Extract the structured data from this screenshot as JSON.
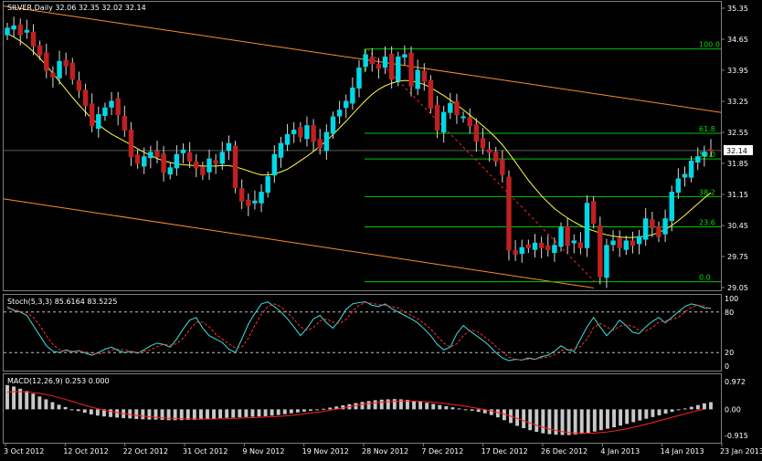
{
  "colors": {
    "background": "#000000",
    "frame": "#7f7f7f",
    "bull_candle": "#00d8e8",
    "bear_candle": "#c02020",
    "wick": "#d8d8d8",
    "ma": "#ffff40",
    "channel": "#ff8c2a",
    "fib": "#00c800",
    "fib_label": "#00e000",
    "stoch_main": "#40e0e0",
    "stoch_signal": "#ff3030",
    "macd_hist": "#c8c8c8",
    "macd_signal": "#ff2020",
    "price_tag_bg": "#ffffff"
  },
  "header": {
    "price": "SILVER,Daily  32.06 32.35 32.02 32.14",
    "stoch": "Stoch(5,3,3) 85.6164 83.5225",
    "macd": "MACD(12,26,9) 0.253 0.000"
  },
  "current_price": "32.14",
  "chart_data": {
    "type": "candlestick",
    "symbol": "SILVER",
    "timeframe": "Daily",
    "price_axis": {
      "range": [
        29.05,
        35.35
      ],
      "ticks": [
        "35.35",
        "34.65",
        "33.95",
        "33.25",
        "32.55",
        "31.85",
        "31.15",
        "30.45",
        "29.75",
        "29.05"
      ]
    },
    "x_ticks": [
      "3 Oct 2012",
      "12 Oct 2012",
      "22 Oct 2012",
      "31 Oct 2012",
      "9 Nov 2012",
      "19 Nov 2012",
      "28 Nov 2012",
      "7 Dec 2012",
      "17 Dec 2012",
      "26 Dec 2012",
      "4 Jan 2013",
      "14 Jan 2013",
      "23 Jan 2013"
    ],
    "closes": [
      34.9,
      34.95,
      34.75,
      34.85,
      34.5,
      34.3,
      33.95,
      33.8,
      34.15,
      34.05,
      33.75,
      33.5,
      33.15,
      32.7,
      32.95,
      33.1,
      33.25,
      32.95,
      32.6,
      32.0,
      31.85,
      32.0,
      32.1,
      32.0,
      31.65,
      31.75,
      32.05,
      32.15,
      31.9,
      31.75,
      31.6,
      31.95,
      31.85,
      32.1,
      32.3,
      31.3,
      31.0,
      30.9,
      31.0,
      31.2,
      31.55,
      32.05,
      32.3,
      32.5,
      32.6,
      32.45,
      32.7,
      32.35,
      32.2,
      32.55,
      32.9,
      33.05,
      33.25,
      33.55,
      34.0,
      34.3,
      34.1,
      34.0,
      34.25,
      33.75,
      34.25,
      34.3,
      33.6,
      33.95,
      33.7,
      33.1,
      32.6,
      33.0,
      33.2,
      32.95,
      32.9,
      32.7,
      32.35,
      32.2,
      32.1,
      31.9,
      31.6,
      29.9,
      29.8,
      29.95,
      29.95,
      30.05,
      29.95,
      29.9,
      30.0,
      30.4,
      30.0,
      30.1,
      29.95,
      30.95,
      30.5,
      29.3,
      30.0,
      30.1,
      29.95,
      30.1,
      30.0,
      30.2,
      30.6,
      30.4,
      30.2,
      30.6,
      31.2,
      31.5,
      31.6,
      31.9,
      32.0,
      32.1,
      32.14
    ],
    "moving_average": {
      "name": "MA",
      "values": [
        34.78,
        34.7,
        34.61,
        34.5,
        34.37,
        34.22,
        34.06,
        33.88,
        33.7,
        33.52,
        33.34,
        33.17,
        33.01,
        32.86,
        32.73,
        32.61,
        32.51,
        32.43,
        32.35,
        32.27,
        32.18,
        32.1,
        32.03,
        31.96,
        31.91,
        31.87,
        31.84,
        31.82,
        31.81,
        31.8,
        31.79,
        31.79,
        31.79,
        31.8,
        31.8,
        31.77,
        31.73,
        31.68,
        31.63,
        31.59,
        31.59,
        31.61,
        31.66,
        31.72,
        31.81,
        31.91,
        32.01,
        32.12,
        32.24,
        32.36,
        32.5,
        32.65,
        32.8,
        32.96,
        33.12,
        33.27,
        33.41,
        33.52,
        33.6,
        33.66,
        33.7,
        33.72,
        33.71,
        33.68,
        33.63,
        33.56,
        33.47,
        33.38,
        33.28,
        33.17,
        33.06,
        32.94,
        32.82,
        32.7,
        32.57,
        32.43,
        32.27,
        32.08,
        31.88,
        31.67,
        31.47,
        31.29,
        31.12,
        30.97,
        30.83,
        30.72,
        30.62,
        30.53,
        30.45,
        30.38,
        30.33,
        30.28,
        30.24,
        30.21,
        30.19,
        30.18,
        30.18,
        30.19,
        30.21,
        30.24,
        30.29,
        30.36,
        30.45,
        30.56,
        30.68,
        30.81,
        30.94,
        31.07,
        31.19
      ]
    },
    "trend_channel": {
      "upper_line": [
        {
          "date": "3 Oct 2012",
          "value": 35.4
        },
        {
          "date": "23 Jan 2013",
          "value": 33.0
        }
      ],
      "lower_line": [
        {
          "date": "3 Oct 2012",
          "value": 31.05
        },
        {
          "date": "23 Jan 2013",
          "value": 28.6
        }
      ]
    },
    "fibonacci": {
      "levels": [
        {
          "label": "100.0",
          "price": 34.43
        },
        {
          "label": "61.8",
          "price": 32.53
        },
        {
          "label": "50.0",
          "price": 31.95
        },
        {
          "label": "38.2",
          "price": 31.1
        },
        {
          "label": "23.6",
          "price": 30.42
        },
        {
          "label": "0.0",
          "price": 29.18
        }
      ]
    },
    "stochastic": {
      "name": "Stoch(5,3,3)",
      "range": [
        0,
        100
      ],
      "ticks": [
        "100",
        "80",
        "20",
        "0"
      ],
      "levels": [
        80,
        20
      ],
      "main": [
        88,
        82,
        80,
        75,
        60,
        45,
        30,
        22,
        20,
        24,
        21,
        23,
        19,
        16,
        20,
        25,
        28,
        23,
        20,
        22,
        19,
        24,
        30,
        34,
        32,
        28,
        40,
        55,
        68,
        72,
        56,
        45,
        40,
        35,
        25,
        20,
        40,
        62,
        78,
        92,
        95,
        88,
        80,
        70,
        58,
        45,
        56,
        70,
        75,
        64,
        56,
        68,
        84,
        92,
        94,
        95,
        90,
        88,
        92,
        85,
        80,
        75,
        70,
        64,
        55,
        45,
        32,
        24,
        28,
        48,
        60,
        52,
        45,
        38,
        30,
        20,
        12,
        8,
        10,
        9,
        12,
        10,
        14,
        16,
        22,
        30,
        24,
        22,
        40,
        58,
        72,
        58,
        45,
        55,
        68,
        60,
        50,
        48,
        58,
        66,
        72,
        64,
        72,
        80,
        88,
        92,
        90,
        86,
        85.6
      ],
      "signal": [
        85,
        84,
        81,
        79,
        72,
        60,
        45,
        32,
        24,
        22,
        22,
        22,
        21,
        19,
        18,
        20,
        24,
        25,
        24,
        22,
        20,
        22,
        24,
        29,
        32,
        31,
        33,
        41,
        54,
        65,
        65,
        58,
        47,
        40,
        33,
        27,
        28,
        41,
        60,
        77,
        88,
        92,
        88,
        79,
        69,
        58,
        53,
        57,
        67,
        70,
        65,
        63,
        69,
        81,
        90,
        94,
        93,
        91,
        90,
        88,
        86,
        80,
        75,
        70,
        63,
        55,
        44,
        34,
        28,
        33,
        45,
        53,
        52,
        45,
        38,
        29,
        21,
        13,
        10,
        9,
        10,
        10,
        12,
        13,
        17,
        23,
        25,
        25,
        29,
        40,
        57,
        63,
        58,
        53,
        59,
        61,
        59,
        53,
        52,
        57,
        65,
        67,
        69,
        72,
        80,
        87,
        90,
        89,
        83.5
      ]
    },
    "macd": {
      "name": "MACD(12,26,9)",
      "range": [
        -0.915,
        0.972
      ],
      "ticks": [
        "0.972",
        "0.00",
        "-0.915"
      ],
      "histogram": [
        0.85,
        0.8,
        0.72,
        0.64,
        0.55,
        0.45,
        0.35,
        0.25,
        0.16,
        0.08,
        0.0,
        -0.06,
        -0.12,
        -0.18,
        -0.22,
        -0.25,
        -0.27,
        -0.29,
        -0.31,
        -0.32,
        -0.34,
        -0.35,
        -0.36,
        -0.36,
        -0.37,
        -0.38,
        -0.38,
        -0.38,
        -0.37,
        -0.37,
        -0.36,
        -0.34,
        -0.33,
        -0.31,
        -0.3,
        -0.29,
        -0.28,
        -0.27,
        -0.26,
        -0.25,
        -0.24,
        -0.22,
        -0.2,
        -0.17,
        -0.14,
        -0.11,
        -0.08,
        -0.05,
        -0.02,
        0.02,
        0.06,
        0.1,
        0.14,
        0.18,
        0.22,
        0.26,
        0.29,
        0.32,
        0.34,
        0.35,
        0.36,
        0.35,
        0.33,
        0.3,
        0.27,
        0.23,
        0.19,
        0.15,
        0.11,
        0.07,
        0.03,
        -0.01,
        -0.05,
        -0.09,
        -0.14,
        -0.2,
        -0.28,
        -0.38,
        -0.48,
        -0.58,
        -0.66,
        -0.73,
        -0.79,
        -0.84,
        -0.87,
        -0.89,
        -0.9,
        -0.9,
        -0.88,
        -0.86,
        -0.82,
        -0.78,
        -0.73,
        -0.68,
        -0.63,
        -0.57,
        -0.51,
        -0.45,
        -0.39,
        -0.33,
        -0.27,
        -0.21,
        -0.15,
        -0.09,
        -0.03,
        0.03,
        0.09,
        0.15,
        0.21,
        0.25
      ],
      "signal": [
        0.6,
        0.62,
        0.62,
        0.61,
        0.59,
        0.56,
        0.52,
        0.47,
        0.41,
        0.35,
        0.28,
        0.21,
        0.14,
        0.08,
        0.02,
        -0.03,
        -0.07,
        -0.11,
        -0.15,
        -0.18,
        -0.21,
        -0.24,
        -0.26,
        -0.28,
        -0.3,
        -0.31,
        -0.32,
        -0.33,
        -0.34,
        -0.34,
        -0.34,
        -0.34,
        -0.34,
        -0.33,
        -0.33,
        -0.32,
        -0.31,
        -0.3,
        -0.29,
        -0.28,
        -0.27,
        -0.26,
        -0.25,
        -0.23,
        -0.21,
        -0.19,
        -0.16,
        -0.13,
        -0.1,
        -0.07,
        -0.03,
        0.01,
        0.05,
        0.09,
        0.13,
        0.17,
        0.2,
        0.23,
        0.25,
        0.27,
        0.28,
        0.29,
        0.29,
        0.29,
        0.28,
        0.27,
        0.25,
        0.23,
        0.2,
        0.17,
        0.14,
        0.11,
        0.07,
        0.03,
        -0.01,
        -0.06,
        -0.11,
        -0.17,
        -0.24,
        -0.32,
        -0.4,
        -0.48,
        -0.56,
        -0.63,
        -0.69,
        -0.74,
        -0.78,
        -0.81,
        -0.83,
        -0.84,
        -0.84,
        -0.83,
        -0.81,
        -0.79,
        -0.76,
        -0.72,
        -0.68,
        -0.63,
        -0.58,
        -0.52,
        -0.46,
        -0.4,
        -0.34,
        -0.28,
        -0.22,
        -0.16,
        -0.1,
        -0.04,
        0.0
      ]
    }
  }
}
